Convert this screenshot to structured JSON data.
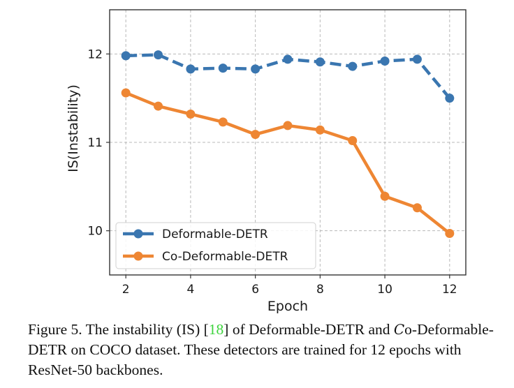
{
  "chart_data": {
    "type": "line",
    "title": "",
    "xlabel": "Epoch",
    "ylabel": "IS(Instability)",
    "xlim": [
      1.5,
      12.5
    ],
    "ylim": [
      9.5,
      12.5
    ],
    "xticks": [
      2,
      4,
      6,
      8,
      10,
      12
    ],
    "yticks": [
      10,
      11,
      12
    ],
    "grid": true,
    "legend_position": "lower-left",
    "x": [
      2,
      3,
      4,
      5,
      6,
      7,
      8,
      9,
      10,
      11,
      12
    ],
    "series": [
      {
        "name": "Deformable-DETR",
        "color": "#3a76b0",
        "linestyle": "dashed",
        "marker": "circle",
        "values": [
          11.98,
          11.99,
          11.83,
          11.84,
          11.83,
          11.94,
          11.91,
          11.86,
          11.92,
          11.94,
          11.5
        ]
      },
      {
        "name": "Co-Deformable-DETR",
        "color": "#ee8633",
        "linestyle": "solid",
        "marker": "circle",
        "values": [
          11.56,
          11.41,
          11.32,
          11.23,
          11.09,
          11.19,
          11.14,
          11.02,
          10.39,
          10.26,
          9.97
        ]
      }
    ]
  },
  "caption": {
    "prefix": "Figure 5.  The instability (IS) [",
    "citation": "18",
    "middle": "] of Deformable-DETR and ",
    "calligraphic_c": "C",
    "suffix": "o-Deformable-DETR on COCO dataset. These detectors are trained for 12 epochs with ResNet-50 backbones."
  }
}
